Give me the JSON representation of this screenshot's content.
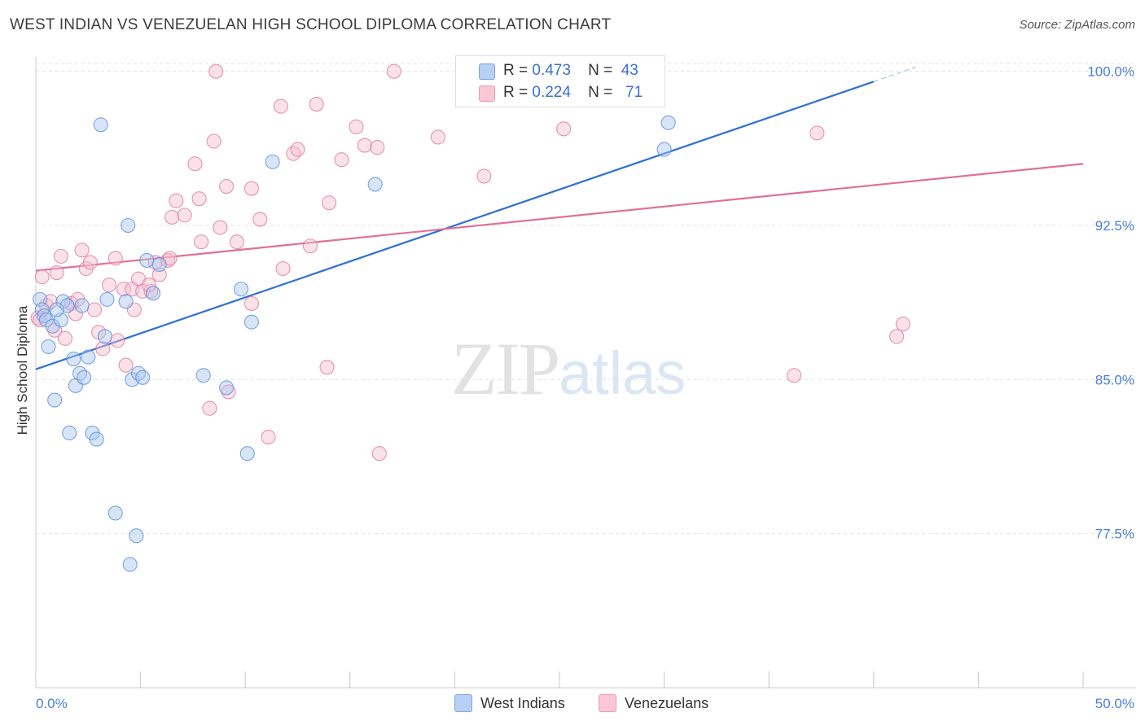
{
  "title": "WEST INDIAN VS VENEZUELAN HIGH SCHOOL DIPLOMA CORRELATION CHART",
  "source": "Source: ZipAtlas.com",
  "watermark": {
    "zip": "ZIP",
    "atlas": "atlas"
  },
  "legend": {
    "rows": [
      {
        "r_label": "R =",
        "r_value": "0.473",
        "n_label": "N =",
        "n_value": "43",
        "color": "#9dbfef"
      },
      {
        "r_label": "R =",
        "r_value": "0.224",
        "n_label": "N =",
        "n_value": "71",
        "color": "#f4a9c0"
      }
    ]
  },
  "bottom_legend": [
    {
      "label": "West Indians",
      "color": "#9dbfef"
    },
    {
      "label": "Venezuelans",
      "color": "#f4a9c0"
    }
  ],
  "colors": {
    "west_indians_fill": "#a9c6f0",
    "west_indians_stroke": "#5a8fdc",
    "west_indians_line": "#3070d0",
    "venezuelans_fill": "#f7bfd0",
    "venezuelans_stroke": "#e07a9e",
    "venezuelans_line": "#e0709a",
    "grid": "#e3e3e3",
    "tick_label": "#4a7fd4"
  },
  "chart_data": {
    "type": "scatter",
    "title": "WEST INDIAN VS VENEZUELAN HIGH SCHOOL DIPLOMA CORRELATION CHART",
    "xlabel": "",
    "ylabel": "High School Diploma",
    "xlim": [
      0,
      50
    ],
    "ylim": [
      70,
      100.7
    ],
    "x_ticks": [
      0,
      5,
      10,
      15,
      20,
      25,
      30,
      35,
      40,
      45,
      50
    ],
    "x_tick_labels": {
      "0": "0.0%",
      "50": "50.0%"
    },
    "y_ticks": [
      77.5,
      85.0,
      92.5,
      100.0
    ],
    "y_tick_labels": [
      "77.5%",
      "85.0%",
      "92.5%",
      "100.0%"
    ],
    "grid": "horizontal dashed",
    "legend_position": "top-center",
    "series": [
      {
        "name": "West Indians",
        "r": 0.473,
        "n": 43,
        "trend": {
          "x": [
            0,
            40
          ],
          "y": [
            85.5,
            99.5
          ],
          "dashed_extension_to": [
            42,
            100.2
          ]
        },
        "points": [
          [
            0.2,
            88.9
          ],
          [
            0.3,
            88.4
          ],
          [
            0.4,
            88.1
          ],
          [
            0.5,
            87.9
          ],
          [
            0.6,
            86.6
          ],
          [
            0.8,
            87.6
          ],
          [
            0.9,
            84.0
          ],
          [
            1.2,
            87.9
          ],
          [
            1.3,
            88.8
          ],
          [
            1.5,
            88.6
          ],
          [
            1.8,
            86.0
          ],
          [
            1.9,
            84.7
          ],
          [
            2.1,
            85.3
          ],
          [
            2.2,
            88.6
          ],
          [
            2.3,
            85.1
          ],
          [
            2.5,
            86.1
          ],
          [
            2.7,
            82.4
          ],
          [
            1.6,
            82.4
          ],
          [
            3.1,
            97.4
          ],
          [
            3.3,
            87.1
          ],
          [
            3.4,
            88.9
          ],
          [
            3.8,
            78.5
          ],
          [
            4.3,
            88.8
          ],
          [
            4.4,
            92.5
          ],
          [
            4.5,
            76.0
          ],
          [
            4.6,
            85.0
          ],
          [
            4.9,
            85.3
          ],
          [
            4.8,
            77.4
          ],
          [
            5.1,
            85.1
          ],
          [
            5.3,
            90.8
          ],
          [
            5.6,
            89.2
          ],
          [
            5.9,
            90.6
          ],
          [
            8.0,
            85.2
          ],
          [
            9.1,
            84.6
          ],
          [
            9.8,
            89.4
          ],
          [
            10.1,
            81.4
          ],
          [
            10.3,
            87.8
          ],
          [
            11.3,
            95.6
          ],
          [
            16.2,
            94.5
          ],
          [
            30.0,
            96.2
          ],
          [
            30.2,
            97.5
          ],
          [
            2.9,
            82.1
          ],
          [
            1.0,
            88.4
          ]
        ]
      },
      {
        "name": "Venezuelans",
        "r": 0.224,
        "n": 71,
        "trend": {
          "x": [
            0,
            50
          ],
          "y": [
            90.3,
            95.5
          ]
        },
        "points": [
          [
            0.1,
            88.0
          ],
          [
            0.3,
            90.0
          ],
          [
            0.5,
            88.6
          ],
          [
            0.7,
            88.8
          ],
          [
            0.9,
            87.4
          ],
          [
            1.0,
            90.2
          ],
          [
            1.2,
            91.0
          ],
          [
            1.4,
            87.0
          ],
          [
            1.7,
            88.7
          ],
          [
            1.9,
            88.2
          ],
          [
            2.0,
            88.9
          ],
          [
            2.2,
            91.3
          ],
          [
            2.4,
            90.4
          ],
          [
            2.6,
            90.7
          ],
          [
            2.8,
            88.4
          ],
          [
            3.0,
            87.3
          ],
          [
            3.2,
            86.5
          ],
          [
            3.5,
            89.6
          ],
          [
            3.8,
            90.9
          ],
          [
            3.9,
            86.9
          ],
          [
            4.2,
            89.4
          ],
          [
            4.3,
            85.7
          ],
          [
            4.6,
            89.4
          ],
          [
            4.7,
            88.4
          ],
          [
            4.9,
            89.9
          ],
          [
            5.1,
            89.3
          ],
          [
            5.5,
            89.3
          ],
          [
            5.7,
            90.7
          ],
          [
            5.9,
            90.1
          ],
          [
            6.3,
            90.8
          ],
          [
            6.4,
            90.9
          ],
          [
            6.5,
            92.9
          ],
          [
            6.7,
            93.7
          ],
          [
            7.1,
            93.0
          ],
          [
            7.6,
            95.5
          ],
          [
            7.8,
            93.8
          ],
          [
            7.9,
            91.7
          ],
          [
            8.3,
            83.6
          ],
          [
            8.5,
            96.6
          ],
          [
            8.8,
            92.4
          ],
          [
            8.6,
            100.0
          ],
          [
            9.1,
            94.4
          ],
          [
            9.2,
            84.4
          ],
          [
            9.6,
            91.7
          ],
          [
            10.3,
            94.3
          ],
          [
            10.3,
            88.7
          ],
          [
            10.7,
            92.8
          ],
          [
            11.1,
            82.2
          ],
          [
            11.7,
            98.3
          ],
          [
            11.8,
            90.4
          ],
          [
            12.3,
            96.0
          ],
          [
            12.5,
            96.2
          ],
          [
            13.1,
            91.5
          ],
          [
            13.4,
            98.4
          ],
          [
            13.9,
            85.6
          ],
          [
            14.0,
            93.6
          ],
          [
            14.6,
            95.7
          ],
          [
            15.3,
            97.3
          ],
          [
            15.7,
            96.4
          ],
          [
            16.3,
            96.3
          ],
          [
            16.4,
            81.4
          ],
          [
            17.1,
            100.0
          ],
          [
            19.2,
            96.8
          ],
          [
            21.4,
            94.9
          ],
          [
            25.2,
            97.2
          ],
          [
            36.2,
            85.2
          ],
          [
            37.3,
            97.0
          ],
          [
            41.1,
            87.1
          ],
          [
            41.4,
            87.7
          ],
          [
            0.2,
            87.9
          ],
          [
            5.4,
            89.6
          ]
        ]
      }
    ]
  }
}
